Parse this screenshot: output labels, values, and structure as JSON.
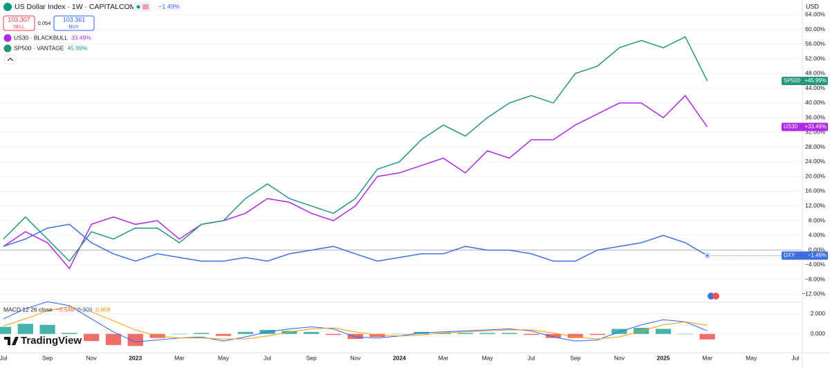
{
  "header": {
    "symbol": "US Dollar Index · 1W · CAPITALCOM",
    "change": "−1.49%",
    "sell_price": "103.307",
    "sell_label": "SELL",
    "spread": "0.054",
    "buy_price": "103.361",
    "buy_label": "BUY",
    "currency": "USD",
    "branding": "TradingView"
  },
  "chart_data": [
    {
      "type": "line",
      "categories": [
        "Jul",
        null,
        "Sep",
        null,
        "Nov",
        null,
        "2023",
        null,
        "Mar",
        null,
        "May",
        null,
        "Jul",
        null,
        "Sep",
        null,
        "Nov",
        null,
        "2024",
        null,
        "Mar",
        null,
        "May",
        null,
        "Jul",
        null,
        "Sep",
        null,
        "Nov",
        null,
        "2025",
        null,
        "Mar",
        null,
        "May",
        null,
        "Jul"
      ],
      "series": [
        {
          "name": "US30",
          "legend": "US30 · BLACKBULL",
          "legend_value": "33.49%",
          "tag_value": "+33.49%",
          "color": "#b027e6",
          "values": [
            1,
            5,
            2,
            -5,
            7,
            9,
            7,
            8,
            3,
            7,
            8,
            10,
            14,
            13,
            10,
            8,
            12,
            20,
            21,
            23,
            25,
            21,
            27,
            25,
            30,
            30,
            34,
            37,
            40,
            40,
            36,
            42,
            33.49,
            null,
            null,
            null,
            null
          ]
        },
        {
          "name": "SP500",
          "legend": "SP500 · VANTAGE",
          "legend_value": "45.99%",
          "tag_value": "+45.99%",
          "color": "#22977a",
          "values": [
            3,
            9,
            3,
            -3,
            5,
            3,
            6,
            6,
            2,
            7,
            8,
            14,
            18,
            14,
            12,
            10,
            14,
            22,
            24,
            30,
            34,
            31,
            36,
            40,
            42,
            40,
            48,
            50,
            55,
            57,
            55,
            58,
            45.99,
            null,
            null,
            null,
            null
          ]
        },
        {
          "name": "DXY",
          "tag_value": "−1.49%",
          "color": "#3d6fe0",
          "values": [
            1,
            3,
            6,
            7,
            2,
            -1,
            -3,
            -1,
            -2,
            -3,
            -3,
            -2,
            -3,
            -1,
            0,
            1,
            -1,
            -3,
            -2,
            -1,
            -1,
            1,
            0,
            0,
            -1,
            -3,
            -3,
            0,
            1,
            2,
            4,
            2,
            -1.49,
            null,
            null,
            null,
            null
          ]
        }
      ],
      "ylim": [
        -14,
        68
      ],
      "yticks": [
        {
          "value": -12,
          "label": "−12.00%"
        },
        {
          "value": -8,
          "label": "−8.00%"
        },
        {
          "value": -4,
          "label": "−4.00%"
        },
        {
          "value": 0,
          "label": "0.00%"
        },
        {
          "value": 4,
          "label": "4.00%"
        },
        {
          "value": 8,
          "label": "8.00%"
        },
        {
          "value": 12,
          "label": "12.00%"
        },
        {
          "value": 16,
          "label": "16.00%"
        },
        {
          "value": 20,
          "label": "20.00%"
        },
        {
          "value": 24,
          "label": "24.00%"
        },
        {
          "value": 28,
          "label": "28.00%"
        },
        {
          "value": 32,
          "label": "32.00%"
        },
        {
          "value": 36,
          "label": "36.00%"
        },
        {
          "value": 40,
          "label": "40.00%"
        },
        {
          "value": 44,
          "label": "44.00%"
        },
        {
          "value": 48,
          "label": "48.00%"
        },
        {
          "value": 52,
          "label": "52.00%"
        },
        {
          "value": 56,
          "label": "56.00%"
        },
        {
          "value": 60,
          "label": "60.00%"
        },
        {
          "value": 64,
          "label": "64.00%"
        }
      ]
    },
    {
      "type": "macd",
      "title": "MACD 12 26 close",
      "series": [
        {
          "kind": "histogram",
          "value_label": "−0.549",
          "color": "#ef5350",
          "up_color": "#26a69a",
          "values": [
            0.7,
            1.0,
            0.9,
            0.1,
            -0.7,
            -1.1,
            -1.2,
            -0.4,
            0,
            0.1,
            -0.2,
            0.2,
            0.4,
            0.3,
            0.2,
            -0.1,
            -0.5,
            -0.3,
            0,
            0.2,
            0.1,
            0.1,
            0.1,
            0.1,
            -0.1,
            -0.4,
            -0.4,
            -0.1,
            0.5,
            0.6,
            0.5,
            0,
            -0.549,
            null,
            null,
            null,
            null
          ]
        },
        {
          "kind": "line",
          "value_label": "0.309",
          "color": "#2962ff",
          "values": [
            1.5,
            2.5,
            3.2,
            2.8,
            1.5,
            0.2,
            -0.8,
            -0.6,
            -0.4,
            -0.3,
            -0.7,
            -0.3,
            0.2,
            0.5,
            0.7,
            0.5,
            -0.3,
            -0.4,
            -0.2,
            0.1,
            0.2,
            0.3,
            0.4,
            0.5,
            0.3,
            -0.3,
            -0.7,
            -0.6,
            0.2,
            0.9,
            1.4,
            1.2,
            0.309,
            null,
            null,
            null,
            null
          ]
        },
        {
          "kind": "line",
          "value_label": "0.858",
          "color": "#ff9800",
          "values": [
            0.8,
            1.5,
            2.3,
            2.7,
            2.2,
            1.3,
            0.4,
            -0.2,
            -0.4,
            -0.4,
            -0.5,
            -0.5,
            -0.2,
            0.2,
            0.5,
            0.6,
            0.2,
            -0.1,
            -0.2,
            -0.1,
            0.1,
            0.2,
            0.3,
            0.4,
            0.4,
            0.1,
            -0.3,
            -0.5,
            -0.3,
            0.3,
            0.9,
            1.2,
            0.858,
            null,
            null,
            null,
            null
          ]
        }
      ],
      "ylim": [
        -1.8,
        3
      ],
      "yticks": [
        {
          "value": 0,
          "label": "0.000"
        },
        {
          "value": 2,
          "label": "2.000"
        }
      ]
    }
  ]
}
